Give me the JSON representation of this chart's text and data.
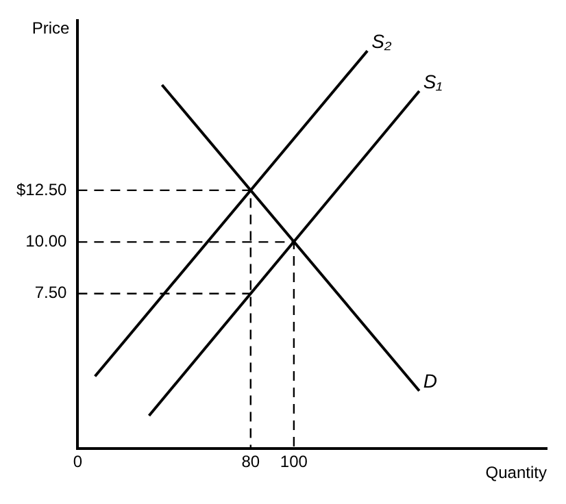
{
  "chart_data": {
    "type": "line",
    "xlabel": "Quantity",
    "ylabel": "Price",
    "xlim": [
      0,
      217
    ],
    "ylim": [
      0,
      20.7
    ],
    "xticks": [
      0,
      80,
      100
    ],
    "yticks": [
      {
        "value": 7.5,
        "label": "7.50"
      },
      {
        "value": 10,
        "label": "10.00"
      },
      {
        "value": 12.5,
        "label": "$12.50"
      }
    ],
    "grid": false,
    "legend": false,
    "marker": "none",
    "series": [
      {
        "name": "S₂",
        "color": "#000000",
        "x": [
          8,
          134
        ],
        "values": [
          3.5,
          19.25
        ]
      },
      {
        "name": "S₁",
        "color": "#000000",
        "x": [
          33,
          158
        ],
        "values": [
          1.6,
          17.3
        ]
      },
      {
        "name": "D",
        "color": "#000000",
        "x": [
          39,
          158
        ],
        "values": [
          17.6,
          2.8
        ]
      },
      {
        "color": "#000000",
        "line_style": "dashed",
        "x": [
          0,
          80,
          80
        ],
        "values": [
          12.5,
          12.5,
          0
        ]
      },
      {
        "color": "#000000",
        "line_style": "dashed",
        "x": [
          0,
          100,
          100
        ],
        "values": [
          10,
          10,
          0
        ]
      },
      {
        "color": "#000000",
        "line_style": "dashed",
        "x": [
          0,
          80
        ],
        "values": [
          7.5,
          7.5
        ]
      }
    ]
  }
}
